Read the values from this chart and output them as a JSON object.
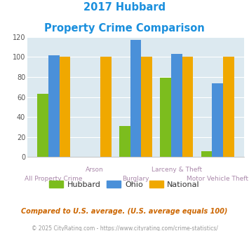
{
  "title_line1": "2017 Hubbard",
  "title_line2": "Property Crime Comparison",
  "categories": [
    "All Property Crime",
    "Arson",
    "Burglary",
    "Larceny & Theft",
    "Motor Vehicle Theft"
  ],
  "x_labels_top": [
    "",
    "Arson",
    "",
    "Larceny & Theft",
    ""
  ],
  "x_labels_bottom": [
    "All Property Crime",
    "",
    "Burglary",
    "",
    "Motor Vehicle Theft"
  ],
  "hubbard": [
    63,
    0,
    31,
    79,
    6
  ],
  "ohio": [
    102,
    0,
    117,
    103,
    74
  ],
  "national": [
    100,
    100,
    100,
    100,
    100
  ],
  "hubbard_color": "#7cbd1e",
  "ohio_color": "#4a90d9",
  "national_color": "#f0a800",
  "bg_color": "#dce9f0",
  "ylim": [
    0,
    120
  ],
  "yticks": [
    0,
    20,
    40,
    60,
    80,
    100,
    120
  ],
  "title_color": "#1a8fdd",
  "xlabel_color": "#aa88aa",
  "footnote1": "Compared to U.S. average. (U.S. average equals 100)",
  "footnote2": "© 2025 CityRating.com - https://www.cityrating.com/crime-statistics/",
  "footnote1_color": "#cc6600",
  "footnote2_color": "#999999",
  "legend_labels": [
    "Hubbard",
    "Ohio",
    "National"
  ],
  "legend_text_color": "#333333"
}
